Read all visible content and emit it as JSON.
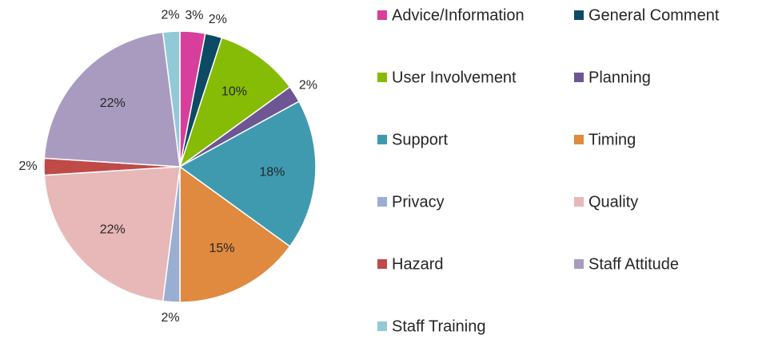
{
  "chart_data": {
    "type": "pie",
    "categories": [
      "Advice/Information",
      "General Comment",
      "User Involvement",
      "Planning",
      "Support",
      "Timing",
      "Privacy",
      "Quality",
      "Hazard",
      "Staff Attitude",
      "Staff Training"
    ],
    "values": [
      3,
      2,
      10,
      2,
      18,
      15,
      2,
      22,
      2,
      22,
      2
    ],
    "value_labels": [
      "3%",
      "2%",
      "10%",
      "2%",
      "18%",
      "15%",
      "2%",
      "22%",
      "2%",
      "22%",
      "2%"
    ],
    "colors": [
      "#d83f9c",
      "#0d4a64",
      "#86bc06",
      "#6e5594",
      "#3f9ab0",
      "#df8a3e",
      "#9aaed4",
      "#e7b8b7",
      "#bf4a47",
      "#a99bc0",
      "#92c9d8"
    ],
    "legend": "right"
  }
}
